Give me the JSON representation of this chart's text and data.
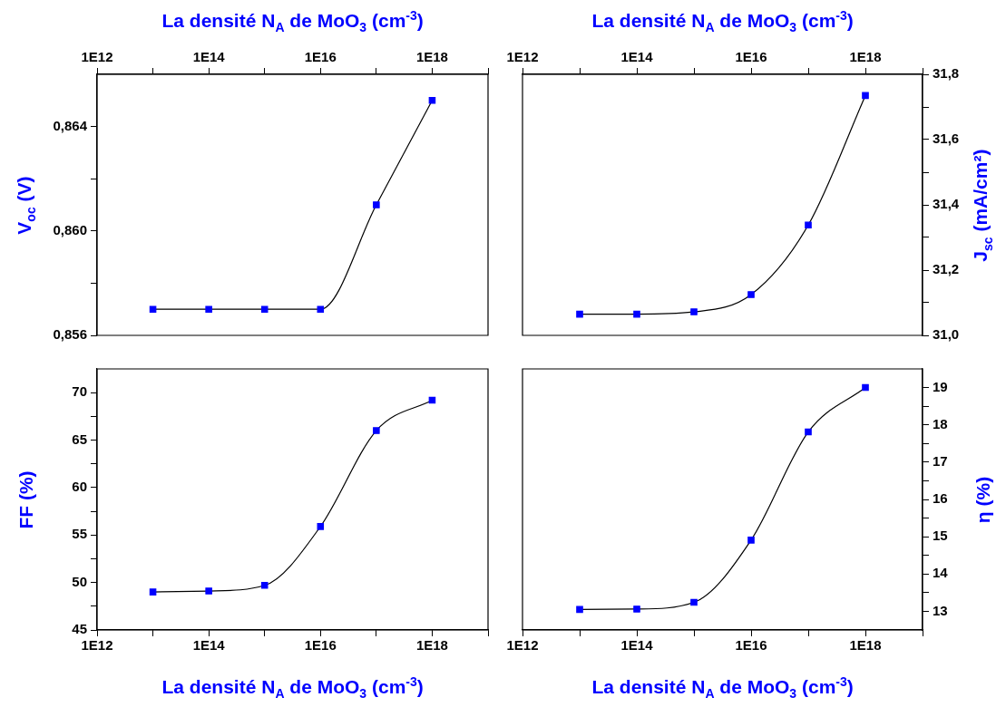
{
  "chart_data": [
    {
      "type": "line",
      "xlabel": "La densité N$_{A}$ de MoO$_{3}$ (cm$^{-3}$)",
      "ylabel": "V$_{oc}$ (V)",
      "log": "x",
      "marker": "square",
      "line_style": "solid",
      "x": [
        10000000000000.0,
        100000000000000.0,
        1000000000000000.0,
        1e+16,
        1e+17,
        1e+18
      ],
      "series": [
        {
          "color": "#0000ff",
          "values": [
            0.857,
            0.857,
            0.857,
            0.857,
            0.861,
            0.865
          ]
        }
      ],
      "xlim": [
        1000000000000.0,
        1e+19
      ],
      "xticks": [
        {
          "value": 1000000000000.0,
          "label": "1E12"
        },
        {
          "value": 10000000000000.0,
          "label": null
        },
        {
          "value": 100000000000000.0,
          "label": "1E14"
        },
        {
          "value": 1000000000000000.0,
          "label": null
        },
        {
          "value": 1e+16,
          "label": "1E16"
        },
        {
          "value": 1e+17,
          "label": null
        },
        {
          "value": 1e+18,
          "label": "1E18"
        },
        {
          "value": 1e+19,
          "label": null
        }
      ],
      "ylim": [
        0.856,
        0.866
      ],
      "yticks": [
        {
          "value": 0.856,
          "label": "0,856"
        },
        {
          "value": 0.858,
          "label": null
        },
        {
          "value": 0.86,
          "label": "0,860"
        },
        {
          "value": 0.862,
          "label": null
        },
        {
          "value": 0.864,
          "label": "0,864"
        }
      ]
    },
    {
      "type": "line",
      "xlabel": "La densité N$_{A}$ de MoO$_{3}$ (cm$^{-3}$)",
      "y2label": "J$_{sc}$ (mA/cm²)",
      "log": "x",
      "marker": "square",
      "line_style": "solid",
      "x": [
        10000000000000.0,
        100000000000000.0,
        1000000000000000.0,
        1e+16,
        1e+17,
        1e+18
      ],
      "series": [
        {
          "color": "#0000ff",
          "axis": "y2",
          "values": [
            31.065,
            31.065,
            31.072,
            31.125,
            31.338,
            31.735
          ]
        }
      ],
      "xlim": [
        1000000000000.0,
        1e+19
      ],
      "xticks": [
        {
          "value": 1000000000000.0,
          "label": "1E12"
        },
        {
          "value": 10000000000000.0,
          "label": null
        },
        {
          "value": 100000000000000.0,
          "label": "1E14"
        },
        {
          "value": 1000000000000000.0,
          "label": null
        },
        {
          "value": 1e+16,
          "label": "1E16"
        },
        {
          "value": 1e+17,
          "label": null
        },
        {
          "value": 1e+18,
          "label": "1E18"
        },
        {
          "value": 1e+19,
          "label": null
        }
      ],
      "y2lim": [
        31.0,
        31.8
      ],
      "y2ticks": [
        {
          "value": 31.0,
          "label": "31,0"
        },
        {
          "value": 31.1,
          "label": null
        },
        {
          "value": 31.2,
          "label": "31,2"
        },
        {
          "value": 31.3,
          "label": null
        },
        {
          "value": 31.4,
          "label": "31,4"
        },
        {
          "value": 31.5,
          "label": null
        },
        {
          "value": 31.6,
          "label": "31,6"
        },
        {
          "value": 31.7,
          "label": null
        },
        {
          "value": 31.8,
          "label": "31,8"
        }
      ]
    },
    {
      "type": "line",
      "xlabel": "La densité N$_{A}$ de MoO$_{3}$ (cm$^{-3}$)",
      "ylabel": "FF (%)",
      "log": "x",
      "marker": "square",
      "line_style": "solid",
      "x": [
        10000000000000.0,
        100000000000000.0,
        1000000000000000.0,
        1e+16,
        1e+17,
        1e+18
      ],
      "series": [
        {
          "color": "#0000ff",
          "values": [
            49.0,
            49.1,
            49.7,
            55.9,
            66.0,
            69.2
          ]
        }
      ],
      "xlim": [
        1000000000000.0,
        1e+19
      ],
      "xticks": [
        {
          "value": 1000000000000.0,
          "label": "1E12"
        },
        {
          "value": 10000000000000.0,
          "label": null
        },
        {
          "value": 100000000000000.0,
          "label": "1E14"
        },
        {
          "value": 1000000000000000.0,
          "label": null
        },
        {
          "value": 1e+16,
          "label": "1E16"
        },
        {
          "value": 1e+17,
          "label": null
        },
        {
          "value": 1e+18,
          "label": "1E18"
        },
        {
          "value": 1e+19,
          "label": null
        }
      ],
      "ylim": [
        45,
        72.5
      ],
      "yticks": [
        45,
        {
          "value": 47.5,
          "label": null
        },
        50,
        {
          "value": 52.5,
          "label": null
        },
        55,
        {
          "value": 57.5,
          "label": null
        },
        60,
        {
          "value": 62.5,
          "label": null
        },
        65,
        {
          "value": 67.5,
          "label": null
        },
        70
      ]
    },
    {
      "type": "line",
      "xlabel": "La densité N$_{A}$ de MoO$_{3}$ (cm$^{-3}$)",
      "y2label": "η (%)",
      "log": "x",
      "marker": "square",
      "line_style": "solid",
      "x": [
        10000000000000.0,
        100000000000000.0,
        1000000000000000.0,
        1e+16,
        1e+17,
        1e+18
      ],
      "series": [
        {
          "color": "#0000ff",
          "axis": "y2",
          "values": [
            13.05,
            13.06,
            13.24,
            14.91,
            17.81,
            19.0
          ]
        }
      ],
      "xlim": [
        1000000000000.0,
        1e+19
      ],
      "xticks": [
        {
          "value": 1000000000000.0,
          "label": "1E12"
        },
        {
          "value": 10000000000000.0,
          "label": null
        },
        {
          "value": 100000000000000.0,
          "label": "1E14"
        },
        {
          "value": 1000000000000000.0,
          "label": null
        },
        {
          "value": 1e+16,
          "label": "1E16"
        },
        {
          "value": 1e+17,
          "label": null
        },
        {
          "value": 1e+18,
          "label": "1E18"
        },
        {
          "value": 1e+19,
          "label": null
        }
      ],
      "y2lim": [
        12.5,
        19.5
      ],
      "y2ticks": [
        {
          "value": 13,
          "label": "13"
        },
        {
          "value": 13.5,
          "label": null
        },
        {
          "value": 14,
          "label": "14"
        },
        {
          "value": 14.5,
          "label": null
        },
        {
          "value": 15,
          "label": "15"
        },
        {
          "value": 15.5,
          "label": null
        },
        {
          "value": 16,
          "label": "16"
        },
        {
          "value": 16.5,
          "label": null
        },
        {
          "value": 17,
          "label": "17"
        },
        {
          "value": 17.5,
          "label": null
        },
        {
          "value": 18,
          "label": "18"
        },
        {
          "value": 18.5,
          "label": null
        },
        {
          "value": 19,
          "label": "19"
        }
      ]
    }
  ]
}
